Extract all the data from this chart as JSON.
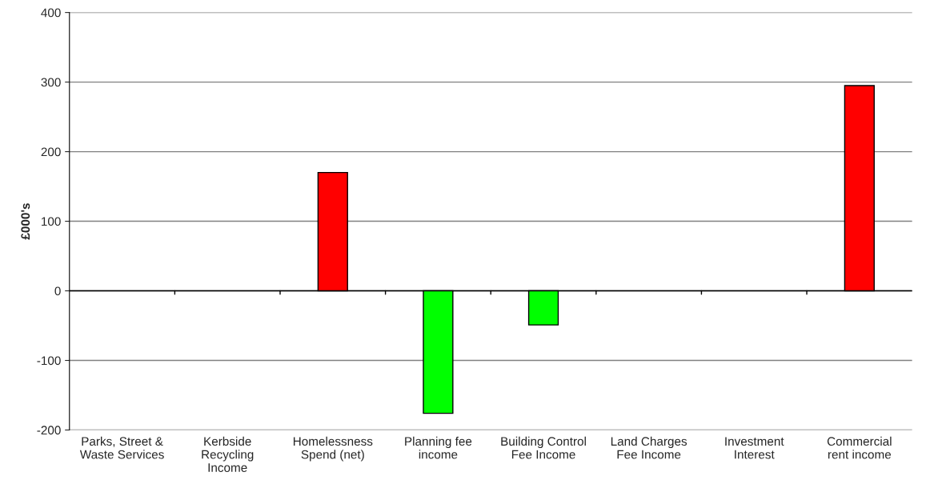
{
  "chart_data": {
    "type": "bar",
    "ylabel": "£000's",
    "categories": [
      "Parks, Street &\nWaste Services",
      "Kerbside\nRecycling\nIncome",
      "Homelessness\nSpend (net)",
      "Planning fee\nincome",
      "Building Control\nFee Income",
      "Land Charges\nFee Income",
      "Investment\nInterest",
      "Commercial\nrent income"
    ],
    "values": [
      null,
      null,
      170,
      -176,
      -49,
      null,
      null,
      295
    ],
    "colors": [
      "#ff0000",
      "#ff0000",
      "#ff0000",
      "#00ff00",
      "#00ff00",
      "#00ff00",
      "#00ff00",
      "#ff0000"
    ],
    "ylim": [
      -200,
      400
    ],
    "yticks": [
      -200,
      -100,
      0,
      100,
      200,
      300,
      400
    ],
    "grid": "y",
    "legend": false
  }
}
